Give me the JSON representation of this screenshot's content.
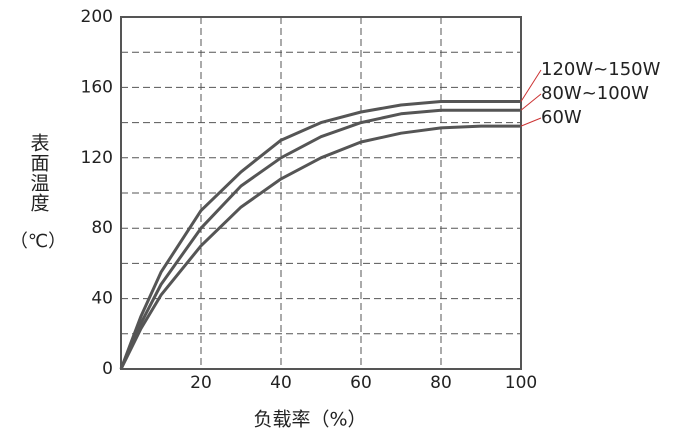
{
  "chart_data": {
    "type": "line",
    "ylabel": "表面温度",
    "yunit": "（℃）",
    "xlabel": "负载率（%）",
    "x": [
      0,
      5,
      10,
      20,
      30,
      40,
      50,
      60,
      70,
      80,
      90,
      100
    ],
    "series": [
      {
        "name": "120W~150W",
        "color": "#555555",
        "values": [
          0,
          30,
          55,
          90,
          112,
          130,
          140,
          146,
          150,
          152,
          152,
          152
        ]
      },
      {
        "name": "80W~100W",
        "color": "#555555",
        "values": [
          0,
          26,
          48,
          80,
          104,
          120,
          132,
          140,
          145,
          147,
          147,
          147
        ]
      },
      {
        "name": "60W",
        "color": "#555555",
        "values": [
          0,
          23,
          42,
          70,
          92,
          108,
          120,
          129,
          134,
          137,
          138,
          138
        ]
      }
    ],
    "xlim": [
      0,
      100
    ],
    "xticks": [
      20,
      40,
      60,
      80,
      100
    ],
    "ylim": [
      0,
      200
    ],
    "yticks": [
      0,
      40,
      80,
      120,
      160,
      200
    ],
    "ygrid": [
      20,
      60,
      100,
      140,
      180
    ],
    "grid": true
  }
}
